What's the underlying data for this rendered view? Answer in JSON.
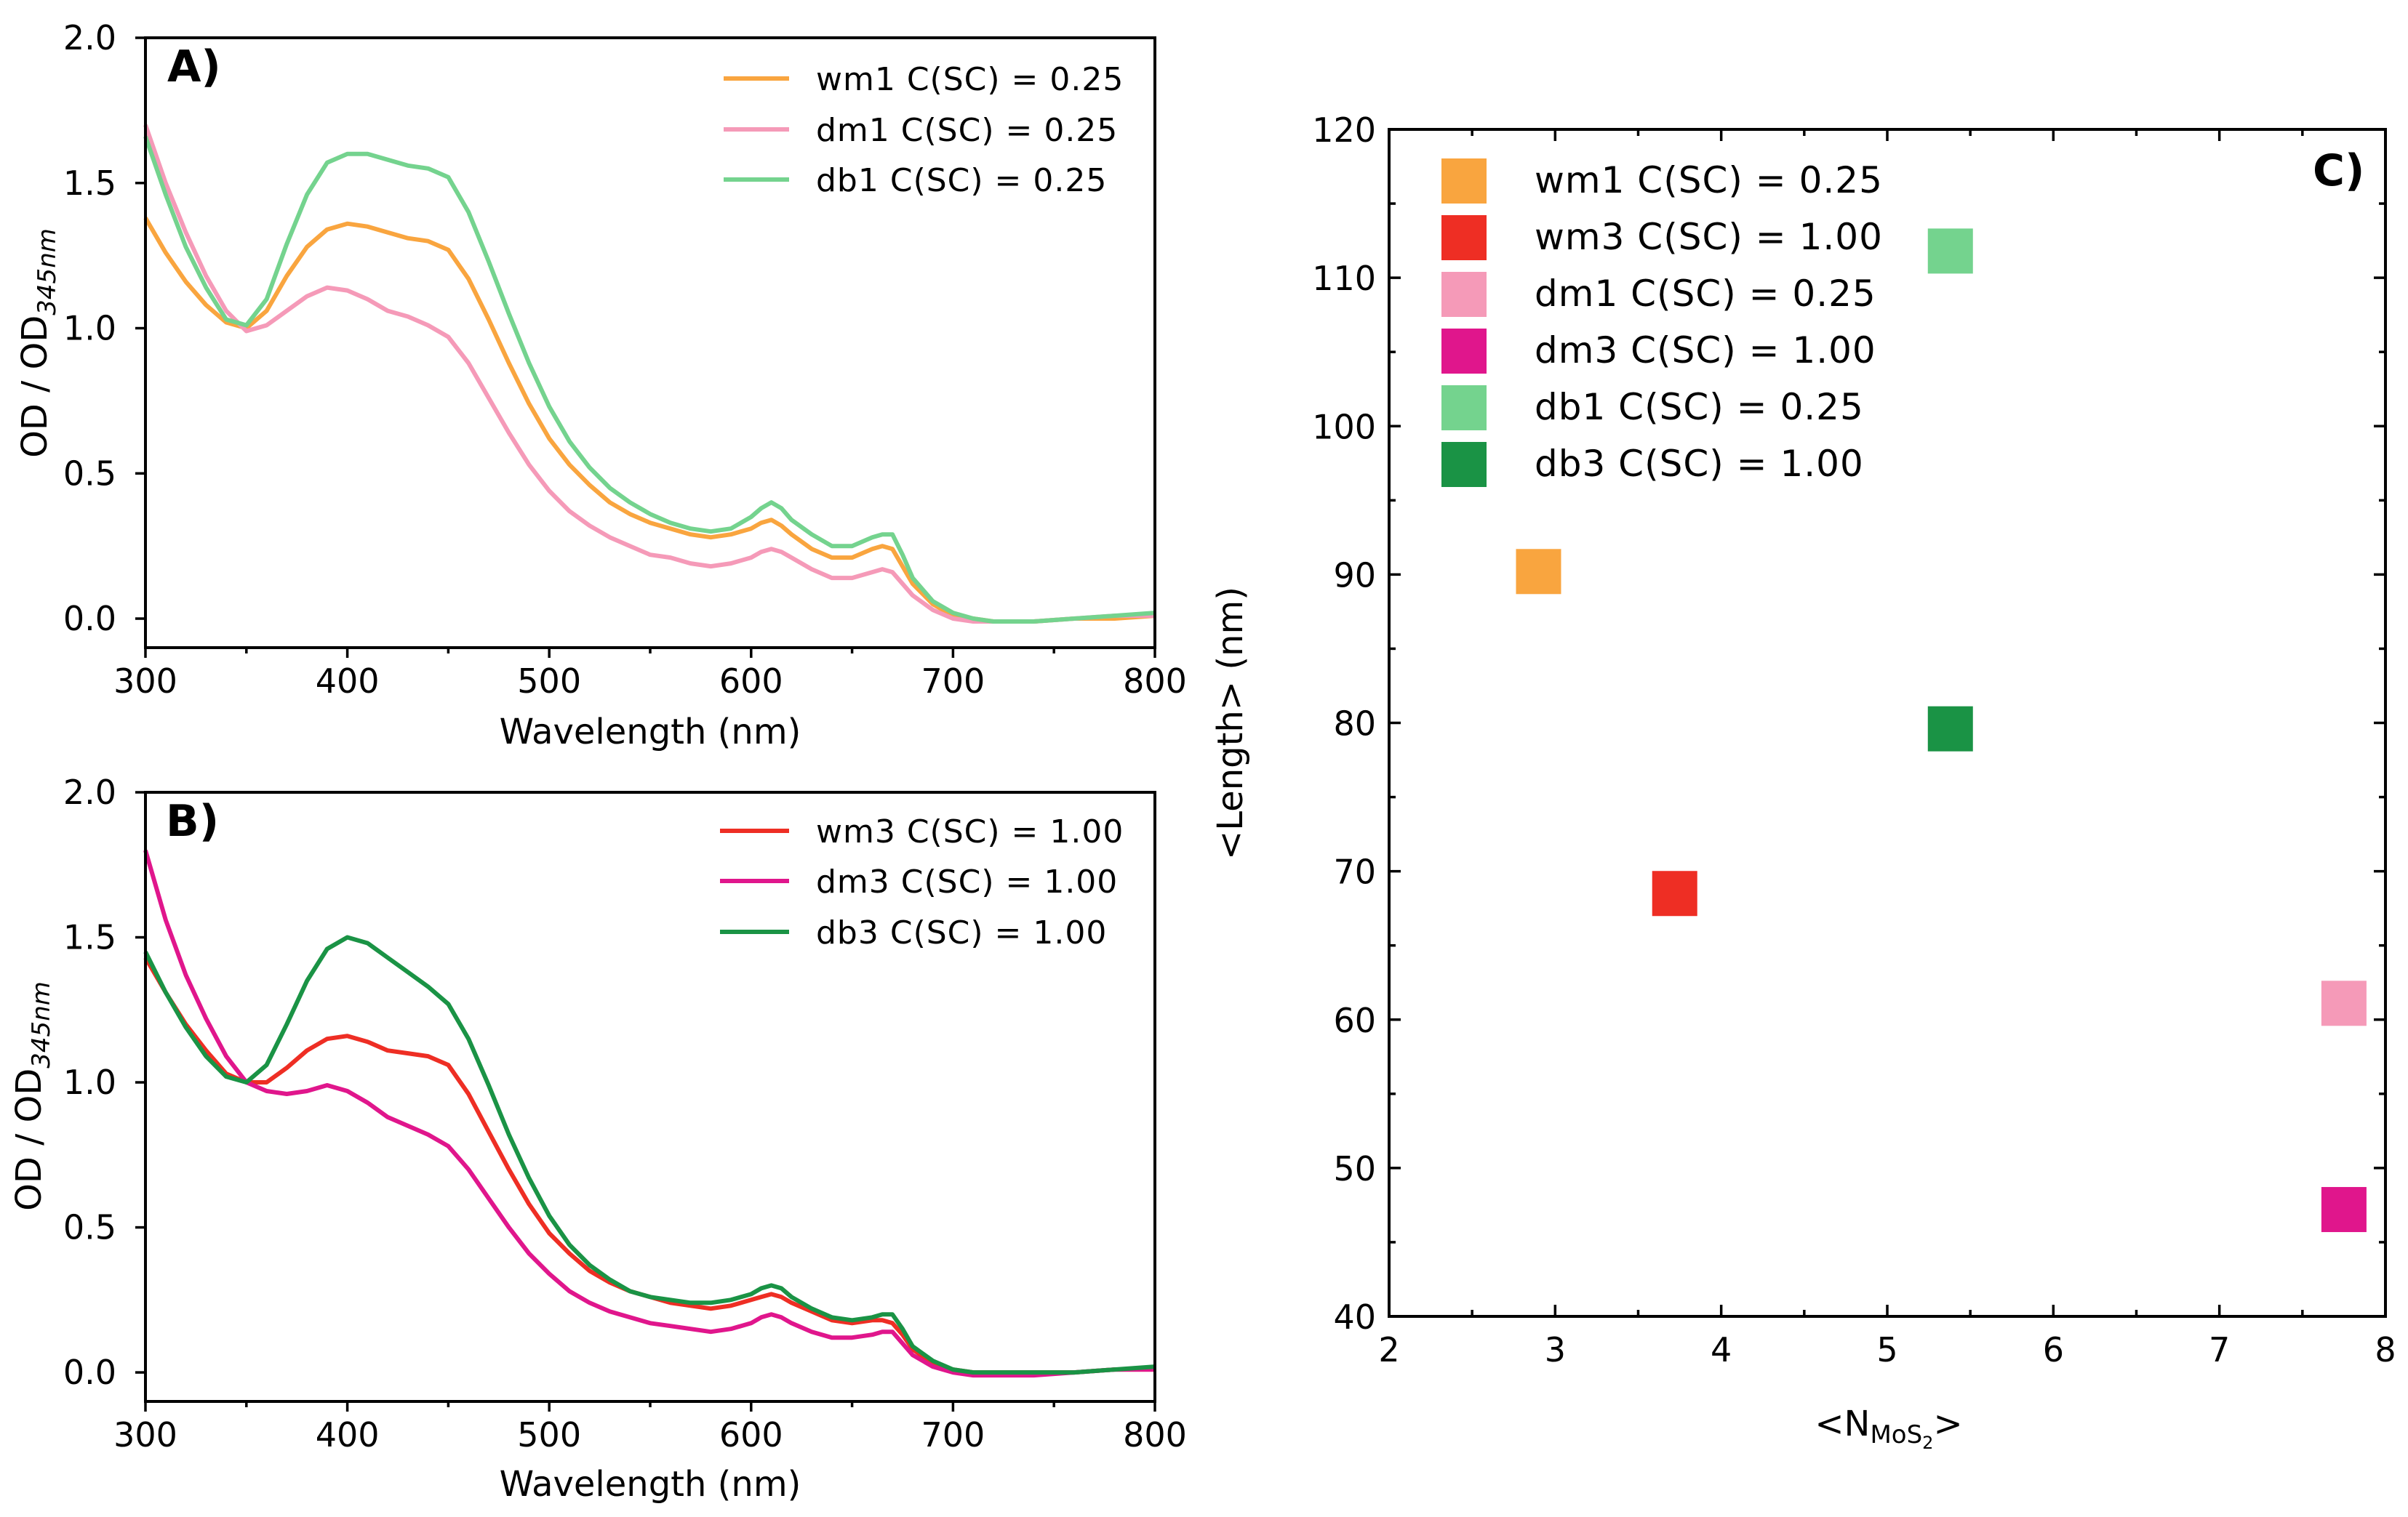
{
  "colors": {
    "wm1": "#f9a53f",
    "dm1": "#f59ab8",
    "db1": "#74d38e",
    "wm3": "#ee2e24",
    "dm3": "#e0168c",
    "db3": "#1a9345"
  },
  "chart_data": [
    {
      "id": "A",
      "panel_label": "A)",
      "type": "line",
      "xlabel": "Wavelength (nm)",
      "ylabel_main": "OD / OD",
      "ylabel_sub": "345nm",
      "xlim": [
        300,
        800
      ],
      "ylim": [
        -0.1,
        2.0
      ],
      "xticks": [
        300,
        400,
        500,
        600,
        700,
        800
      ],
      "yticks": [
        0.0,
        0.5,
        1.0,
        1.5,
        2.0
      ],
      "xtick_labels": [
        "300",
        "400",
        "500",
        "600",
        "700",
        "800"
      ],
      "ytick_labels": [
        "0.0",
        "0.5",
        "1.0",
        "1.5",
        "2.0"
      ],
      "x": [
        300,
        310,
        320,
        330,
        340,
        350,
        360,
        370,
        380,
        390,
        400,
        410,
        420,
        430,
        440,
        450,
        460,
        470,
        480,
        490,
        500,
        510,
        520,
        530,
        540,
        550,
        560,
        570,
        580,
        590,
        600,
        605,
        610,
        615,
        620,
        630,
        640,
        650,
        660,
        665,
        670,
        675,
        680,
        690,
        700,
        710,
        720,
        740,
        760,
        780,
        800
      ],
      "series": [
        {
          "name": "wm1 C(SC) = 0.25",
          "key": "wm1",
          "values": [
            1.38,
            1.26,
            1.16,
            1.08,
            1.02,
            1.0,
            1.06,
            1.18,
            1.28,
            1.34,
            1.36,
            1.35,
            1.33,
            1.31,
            1.3,
            1.27,
            1.17,
            1.03,
            0.88,
            0.74,
            0.62,
            0.53,
            0.46,
            0.4,
            0.36,
            0.33,
            0.31,
            0.29,
            0.28,
            0.29,
            0.31,
            0.33,
            0.34,
            0.32,
            0.29,
            0.24,
            0.21,
            0.21,
            0.24,
            0.25,
            0.24,
            0.18,
            0.12,
            0.05,
            0.01,
            0.0,
            -0.01,
            -0.01,
            0.0,
            0.0,
            0.01
          ]
        },
        {
          "name": "dm1 C(SC) = 0.25",
          "key": "dm1",
          "values": [
            1.7,
            1.5,
            1.33,
            1.18,
            1.06,
            0.99,
            1.01,
            1.06,
            1.11,
            1.14,
            1.13,
            1.1,
            1.06,
            1.04,
            1.01,
            0.97,
            0.88,
            0.76,
            0.64,
            0.53,
            0.44,
            0.37,
            0.32,
            0.28,
            0.25,
            0.22,
            0.21,
            0.19,
            0.18,
            0.19,
            0.21,
            0.23,
            0.24,
            0.23,
            0.21,
            0.17,
            0.14,
            0.14,
            0.16,
            0.17,
            0.16,
            0.12,
            0.08,
            0.03,
            0.0,
            -0.01,
            -0.01,
            -0.01,
            0.0,
            0.01,
            0.01
          ]
        },
        {
          "name": "db1 C(SC) = 0.25",
          "key": "db1",
          "values": [
            1.66,
            1.46,
            1.28,
            1.14,
            1.03,
            1.01,
            1.1,
            1.29,
            1.46,
            1.57,
            1.6,
            1.6,
            1.58,
            1.56,
            1.55,
            1.52,
            1.4,
            1.23,
            1.05,
            0.88,
            0.73,
            0.61,
            0.52,
            0.45,
            0.4,
            0.36,
            0.33,
            0.31,
            0.3,
            0.31,
            0.35,
            0.38,
            0.4,
            0.38,
            0.34,
            0.29,
            0.25,
            0.25,
            0.28,
            0.29,
            0.29,
            0.22,
            0.14,
            0.06,
            0.02,
            0.0,
            -0.01,
            -0.01,
            0.0,
            0.01,
            0.02
          ]
        }
      ]
    },
    {
      "id": "B",
      "panel_label": "B)",
      "type": "line",
      "xlabel": "Wavelength (nm)",
      "ylabel_main": "OD / OD",
      "ylabel_sub": "345nm",
      "xlim": [
        300,
        800
      ],
      "ylim": [
        -0.1,
        2.0
      ],
      "xticks": [
        300,
        400,
        500,
        600,
        700,
        800
      ],
      "yticks": [
        0.0,
        0.5,
        1.0,
        1.5,
        2.0
      ],
      "xtick_labels": [
        "300",
        "400",
        "500",
        "600",
        "700",
        "800"
      ],
      "ytick_labels": [
        "0.0",
        "0.5",
        "1.0",
        "1.5",
        "2.0"
      ],
      "x": [
        300,
        310,
        320,
        330,
        340,
        350,
        360,
        370,
        380,
        390,
        400,
        410,
        420,
        430,
        440,
        450,
        460,
        470,
        480,
        490,
        500,
        510,
        520,
        530,
        540,
        550,
        560,
        570,
        580,
        590,
        600,
        605,
        610,
        615,
        620,
        630,
        640,
        650,
        660,
        665,
        670,
        675,
        680,
        690,
        700,
        710,
        720,
        740,
        760,
        780,
        800
      ],
      "series": [
        {
          "name": "wm3 C(SC) = 1.00",
          "key": "wm3",
          "values": [
            1.43,
            1.31,
            1.2,
            1.11,
            1.03,
            1.0,
            1.0,
            1.05,
            1.11,
            1.15,
            1.16,
            1.14,
            1.11,
            1.1,
            1.09,
            1.06,
            0.96,
            0.83,
            0.7,
            0.58,
            0.48,
            0.41,
            0.35,
            0.31,
            0.28,
            0.26,
            0.24,
            0.23,
            0.22,
            0.23,
            0.25,
            0.26,
            0.27,
            0.26,
            0.24,
            0.21,
            0.18,
            0.17,
            0.18,
            0.18,
            0.17,
            0.13,
            0.08,
            0.03,
            0.01,
            0.0,
            0.0,
            0.0,
            0.0,
            0.01,
            0.01
          ]
        },
        {
          "name": "dm3 C(SC) = 1.00",
          "key": "dm3",
          "values": [
            1.8,
            1.56,
            1.37,
            1.22,
            1.09,
            1.0,
            0.97,
            0.96,
            0.97,
            0.99,
            0.97,
            0.93,
            0.88,
            0.85,
            0.82,
            0.78,
            0.7,
            0.6,
            0.5,
            0.41,
            0.34,
            0.28,
            0.24,
            0.21,
            0.19,
            0.17,
            0.16,
            0.15,
            0.14,
            0.15,
            0.17,
            0.19,
            0.2,
            0.19,
            0.17,
            0.14,
            0.12,
            0.12,
            0.13,
            0.14,
            0.14,
            0.1,
            0.06,
            0.02,
            0.0,
            -0.01,
            -0.01,
            -0.01,
            0.0,
            0.01,
            0.01
          ]
        },
        {
          "name": "db3 C(SC) = 1.00",
          "key": "db3",
          "values": [
            1.45,
            1.31,
            1.19,
            1.09,
            1.02,
            1.0,
            1.06,
            1.2,
            1.35,
            1.46,
            1.5,
            1.48,
            1.43,
            1.38,
            1.33,
            1.27,
            1.15,
            0.99,
            0.82,
            0.67,
            0.54,
            0.44,
            0.37,
            0.32,
            0.28,
            0.26,
            0.25,
            0.24,
            0.24,
            0.25,
            0.27,
            0.29,
            0.3,
            0.29,
            0.26,
            0.22,
            0.19,
            0.18,
            0.19,
            0.2,
            0.2,
            0.15,
            0.09,
            0.04,
            0.01,
            0.0,
            0.0,
            0.0,
            0.0,
            0.01,
            0.02
          ]
        }
      ]
    },
    {
      "id": "C",
      "panel_label": "C)",
      "type": "scatter",
      "xlabel_main": "<N",
      "xlabel_sub1": "MoS",
      "xlabel_sub2": "2",
      "xlabel_end": ">",
      "ylabel": "<Length> (nm)",
      "xlim": [
        2,
        8
      ],
      "ylim": [
        40,
        120
      ],
      "xticks": [
        2,
        3,
        4,
        5,
        6,
        7,
        8
      ],
      "yticks": [
        40,
        50,
        60,
        70,
        80,
        90,
        100,
        110,
        120
      ],
      "xtick_labels": [
        "2",
        "3",
        "4",
        "5",
        "6",
        "7",
        "8"
      ],
      "ytick_labels": [
        "40",
        "50",
        "60",
        "70",
        "80",
        "90",
        "100",
        "110",
        "120"
      ],
      "points": [
        {
          "name": "wm1 C(SC) = 0.25",
          "key": "wm1",
          "x": 2.9,
          "y": 90.2
        },
        {
          "name": "wm3 C(SC) = 1.00",
          "key": "wm3",
          "x": 3.72,
          "y": 68.5
        },
        {
          "name": "dm1 C(SC) = 0.25",
          "key": "dm1",
          "x": 7.75,
          "y": 61.1
        },
        {
          "name": "dm3 C(SC) = 1.00",
          "key": "dm3",
          "x": 7.75,
          "y": 47.2
        },
        {
          "name": "db1 C(SC) = 0.25",
          "key": "db1",
          "x": 5.38,
          "y": 111.8
        },
        {
          "name": "db3 C(SC) = 1.00",
          "key": "db3",
          "x": 5.38,
          "y": 79.6
        }
      ]
    }
  ]
}
